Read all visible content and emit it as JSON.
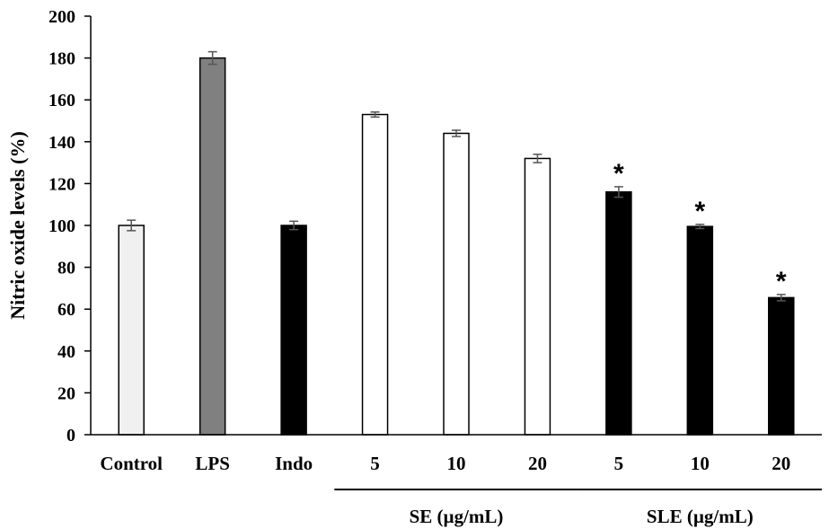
{
  "chart_data": {
    "type": "bar",
    "title": "",
    "xlabel": "",
    "ylabel": "Nitric oxide levels (%)",
    "ylim": [
      0,
      200
    ],
    "yticks": [
      0,
      20,
      40,
      60,
      80,
      100,
      120,
      140,
      160,
      180,
      200
    ],
    "grid": false,
    "categories": [
      "Control",
      "LPS",
      "Indo",
      "5",
      "10",
      "20",
      "5",
      "10",
      "20"
    ],
    "values": [
      100,
      180,
      100,
      153,
      144,
      132,
      116,
      99.5,
      65.5
    ],
    "errors": [
      2.5,
      3,
      2,
      1.2,
      1.5,
      2,
      2.5,
      1,
      1.5
    ],
    "fills": [
      "#f0f0f0",
      "#808080",
      "#000000",
      "#ffffff",
      "#ffffff",
      "#ffffff",
      "#000000",
      "#000000",
      "#000000"
    ],
    "significance": [
      "",
      "",
      "",
      "",
      "",
      "",
      "*",
      "*",
      "*"
    ],
    "groups": [
      {
        "label": "SE (µg/mL)",
        "start": 3,
        "end": 5
      },
      {
        "label": "SLE (µg/mL)",
        "start": 6,
        "end": 8
      }
    ]
  }
}
